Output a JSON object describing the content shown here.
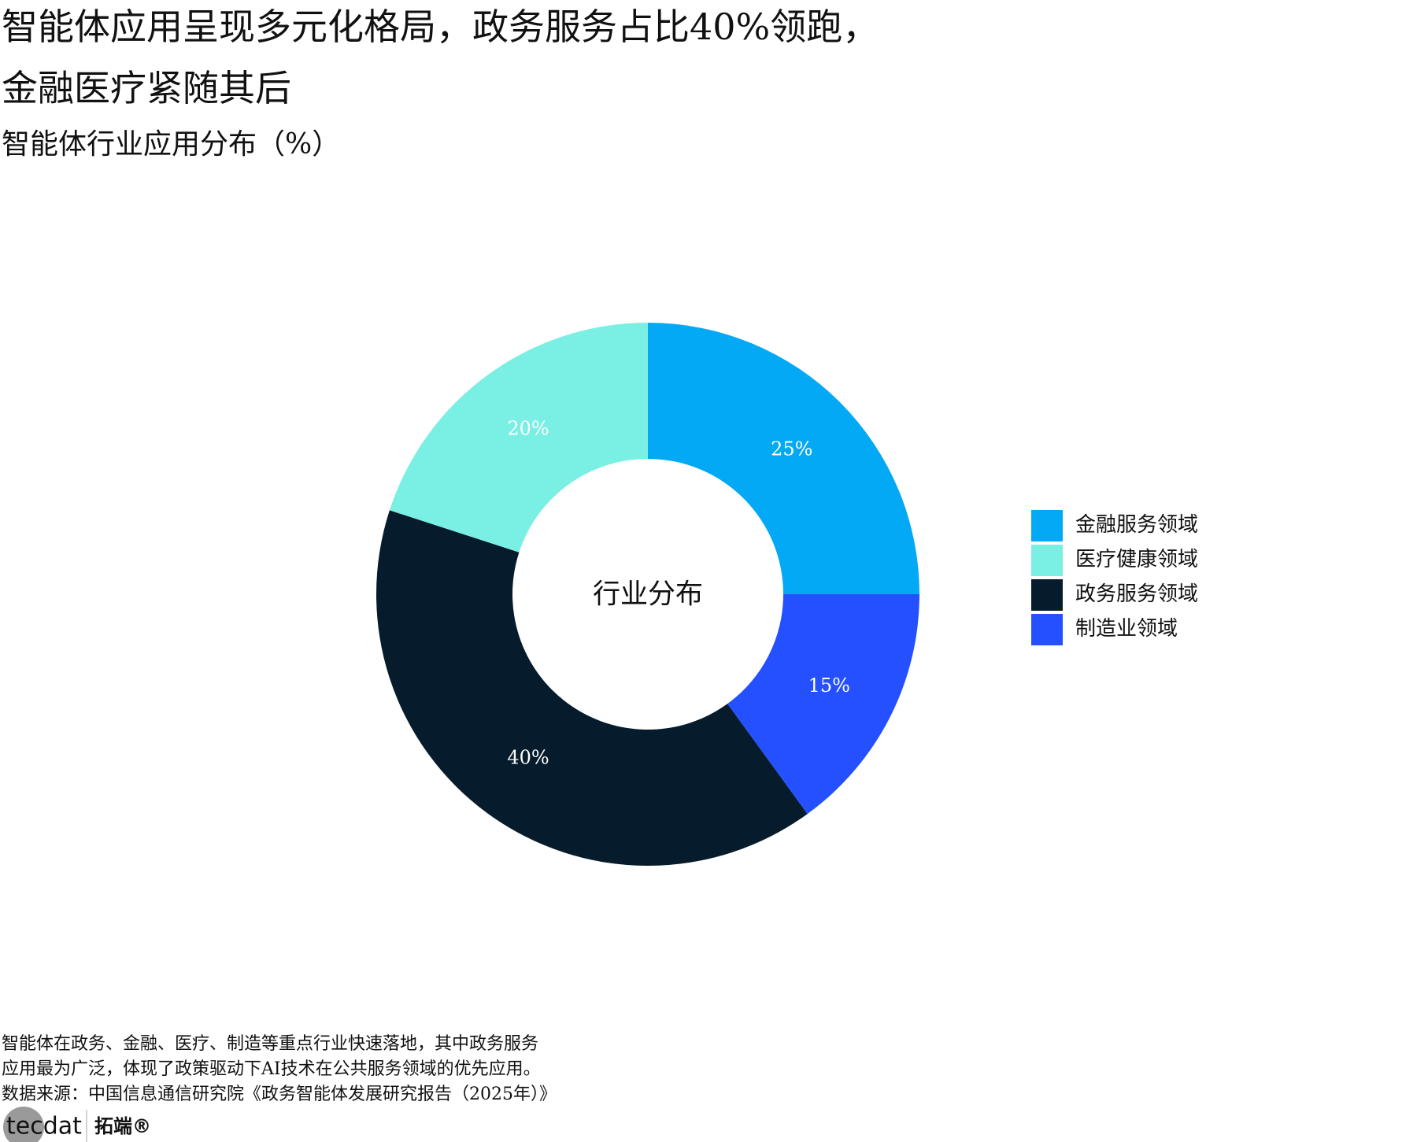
{
  "chart_data": {
    "type": "donut",
    "title": [
      "智能体应用呈现多元化格局，政务服务占比40%领跑，",
      "金融医疗紧随其后"
    ],
    "subtitle": "智能体行业应用分布（%）",
    "hole_label": "行业分布",
    "categories": [
      "金融服务领域",
      "医疗健康领域",
      "政务服务领域",
      "制造业领域"
    ],
    "values": [
      25,
      20,
      40,
      15
    ],
    "value_labels": [
      "25%",
      "20%",
      "40%",
      "15%"
    ],
    "colors": [
      "#03a9f4",
      "#7aefe4",
      "#061c2c",
      "#2450ff"
    ],
    "legend": "right"
  },
  "notes": [
    "智能体在政务、金融、医疗、制造等重点行业快速落地，其中政务服务",
    "应用最为广泛，体现了政策驱动下AI技术在公共服务领域的优先应用。",
    "数据来源：中国信息通信研究院《政务智能体发展研究报告（2025年）》"
  ],
  "logo": {
    "brand": "tecdat",
    "name": "拓端®"
  }
}
